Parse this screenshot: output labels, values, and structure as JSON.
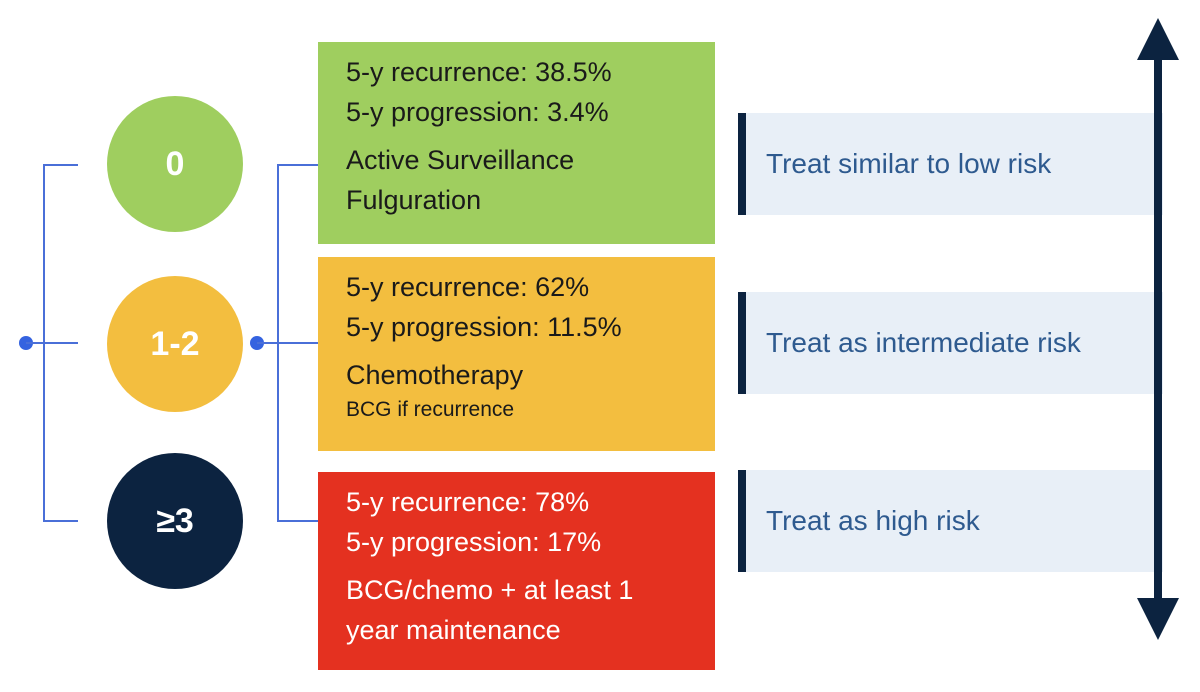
{
  "colors": {
    "low": "#9fce5f",
    "intermediate": "#f3be3f",
    "high": "#e43120",
    "navy": "#0c2340",
    "connector": "#4a6fd8",
    "recommendation_bg": "#e8eff7",
    "recommendation_text": "#2e5a8f"
  },
  "groups": [
    {
      "label": "0",
      "recurrence": "5-y recurrence: 38.5%",
      "progression": "5-y progression: 3.4%",
      "treatment_1": "Active Surveillance",
      "treatment_2": "Fulguration",
      "recommendation": "Treat similar to low risk"
    },
    {
      "label": "1-2",
      "recurrence": "5-y recurrence: 62%",
      "progression": "5-y progression: 11.5%",
      "treatment_1": "Chemotherapy",
      "treatment_2": "BCG if recurrence",
      "recommendation": "Treat as intermediate risk"
    },
    {
      "label": "≥3",
      "recurrence": "5-y recurrence: 78%",
      "progression": "5-y progression: 17%",
      "treatment_1": "BCG/chemo + at least 1",
      "treatment_2": "year maintenance",
      "recommendation": "Treat as high risk"
    }
  ],
  "risk_axis": {
    "arrow": "double-headed-arrow-icon"
  }
}
